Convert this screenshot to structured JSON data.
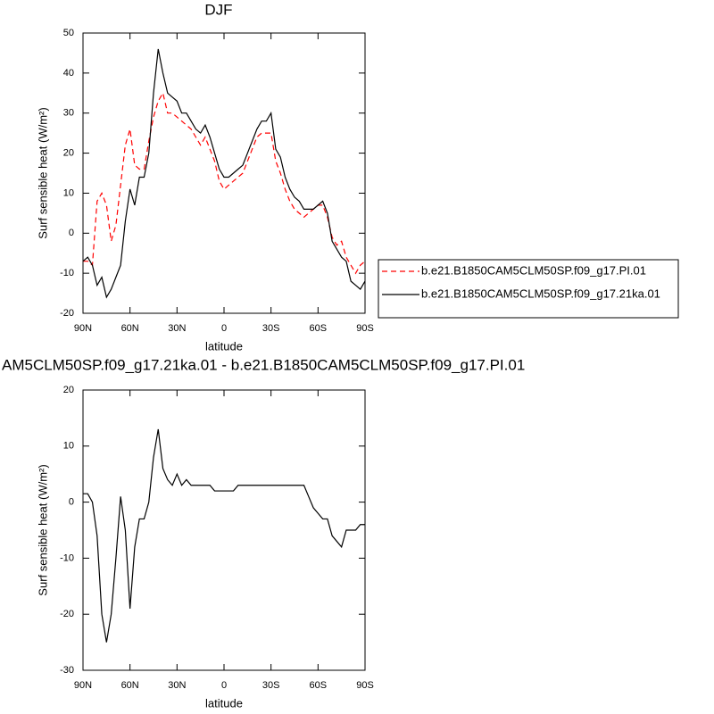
{
  "chart_data": [
    {
      "type": "line",
      "title": "DJF",
      "xlabel": "latitude",
      "ylabel": "Surf sensible heat (W/m²)",
      "x": [
        90,
        87,
        84,
        81,
        78,
        75,
        72,
        69,
        66,
        63,
        60,
        57,
        54,
        51,
        48,
        45,
        42,
        39,
        36,
        33,
        30,
        27,
        24,
        21,
        18,
        15,
        12,
        9,
        6,
        3,
        0,
        -3,
        -6,
        -9,
        -12,
        -15,
        -18,
        -21,
        -24,
        -27,
        -30,
        -33,
        -36,
        -39,
        -42,
        -45,
        -48,
        -51,
        -54,
        -57,
        -60,
        -63,
        -66,
        -69,
        -72,
        -75,
        -78,
        -81,
        -84,
        -87,
        -90
      ],
      "xlim": [
        90,
        -90
      ],
      "xticks": [
        {
          "value": 90,
          "label": "90N"
        },
        {
          "value": 60,
          "label": "60N"
        },
        {
          "value": 30,
          "label": "30N"
        },
        0,
        {
          "value": -30,
          "label": "30S"
        },
        {
          "value": -60,
          "label": "60S"
        },
        {
          "value": -90,
          "label": "90S"
        }
      ],
      "ylim": [
        -20,
        50
      ],
      "yticks": [
        -20,
        -10,
        0,
        10,
        20,
        30,
        40,
        50
      ],
      "legend": "outside-right",
      "series": [
        {
          "name": "b.e21.B1850CAM5CLM50SP.f09_g17.PI.01",
          "color": "#ff0000",
          "dash": true,
          "values": [
            -7,
            -7,
            -8,
            8,
            10,
            7,
            -2,
            2,
            12,
            22,
            26,
            17,
            16,
            16,
            23,
            29,
            33,
            35,
            30,
            30,
            29,
            28,
            27,
            26,
            24,
            22,
            24,
            21,
            18,
            13,
            11,
            12,
            13,
            14,
            15,
            18,
            21,
            24,
            25,
            25,
            25,
            18,
            15,
            11,
            8,
            6,
            5,
            4,
            5,
            6,
            7,
            7,
            4,
            -1,
            -3,
            -2,
            -6,
            -8,
            -10,
            -8,
            -7
          ]
        },
        {
          "name": "b.e21.B1850CAM5CLM50SP.f09_g17.21ka.01",
          "color": "#000000",
          "dash": false,
          "values": [
            -7,
            -6,
            -8,
            -13,
            -11,
            -16,
            -14,
            -11,
            -8,
            3,
            11,
            7,
            14,
            14,
            20,
            35,
            46,
            40,
            35,
            34,
            33,
            30,
            30,
            28,
            26,
            25,
            27,
            24,
            20,
            16,
            14,
            14,
            15,
            16,
            17,
            20,
            23,
            26,
            28,
            28,
            30,
            21,
            19,
            14,
            11,
            9,
            8,
            6,
            6,
            6,
            7,
            8,
            5,
            -2,
            -4,
            -6,
            -7,
            -12,
            -13,
            -14,
            -12
          ]
        }
      ]
    },
    {
      "type": "line",
      "title": "AM5CLM50SP.f09_g17.21ka.01 - b.e21.B1850CAM5CLM50SP.f09_g17.PI.01",
      "xlabel": "latitude",
      "ylabel": "Surf sensible heat (W/m²)",
      "x": [
        90,
        87,
        84,
        81,
        78,
        75,
        72,
        69,
        66,
        63,
        60,
        57,
        54,
        51,
        48,
        45,
        42,
        39,
        36,
        33,
        30,
        27,
        24,
        21,
        18,
        15,
        12,
        9,
        6,
        3,
        0,
        -3,
        -6,
        -9,
        -12,
        -15,
        -18,
        -21,
        -24,
        -27,
        -30,
        -33,
        -36,
        -39,
        -42,
        -45,
        -48,
        -51,
        -54,
        -57,
        -60,
        -63,
        -66,
        -69,
        -72,
        -75,
        -78,
        -81,
        -84,
        -87,
        -90
      ],
      "xlim": [
        90,
        -90
      ],
      "xticks": [
        {
          "value": 90,
          "label": "90N"
        },
        {
          "value": 60,
          "label": "60N"
        },
        {
          "value": 30,
          "label": "30N"
        },
        0,
        {
          "value": -30,
          "label": "30S"
        },
        {
          "value": -60,
          "label": "60S"
        },
        {
          "value": -90,
          "label": "90S"
        }
      ],
      "ylim": [
        -30,
        20
      ],
      "yticks": [
        -30,
        -20,
        -10,
        0,
        10,
        20
      ],
      "series": [
        {
          "color": "#000000",
          "dash": false,
          "values": [
            1.5,
            1.5,
            0,
            -6,
            -20,
            -25,
            -20,
            -10,
            1,
            -5,
            -19,
            -8,
            -3,
            -3,
            0,
            8,
            13,
            6,
            4,
            3,
            5,
            3,
            4,
            3,
            3,
            3,
            3,
            3,
            2,
            2,
            2,
            2,
            2,
            3,
            3,
            3,
            3,
            3,
            3,
            3,
            3,
            3,
            3,
            3,
            3,
            3,
            3,
            3,
            1,
            -1,
            -2,
            -3,
            -3,
            -6,
            -7,
            -8,
            -5,
            -5,
            -5,
            -4,
            -4
          ]
        }
      ]
    }
  ]
}
